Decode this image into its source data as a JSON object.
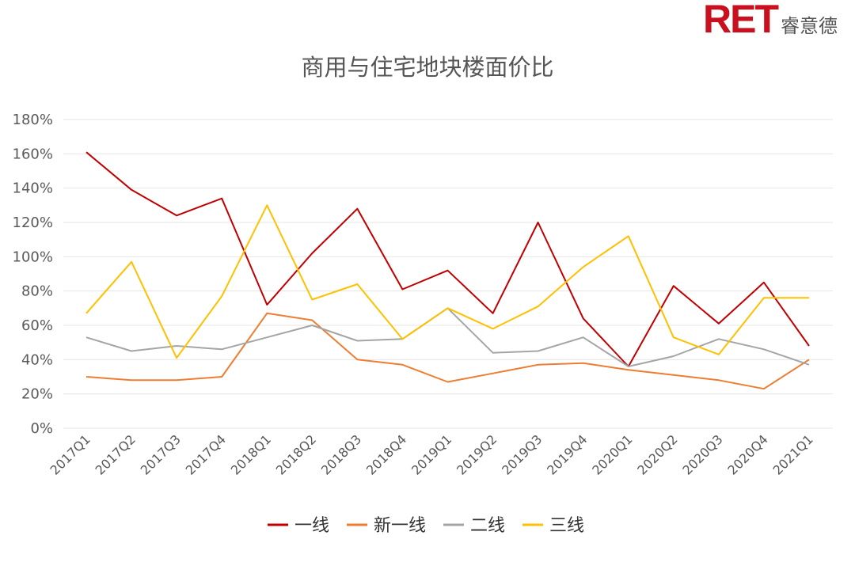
{
  "logo": {
    "mark": "RET",
    "text": "睿意德"
  },
  "chart_data": {
    "type": "line",
    "title": "商用与住宅地块楼面价比",
    "xlabel": "",
    "ylabel": "",
    "categories": [
      "2017Q1",
      "2017Q2",
      "2017Q3",
      "2017Q4",
      "2018Q1",
      "2018Q2",
      "2018Q3",
      "2018Q4",
      "2019Q1",
      "2019Q2",
      "2019Q3",
      "2019Q4",
      "2020Q1",
      "2020Q2",
      "2020Q3",
      "2020Q4",
      "2021Q1"
    ],
    "ylim": [
      0,
      180
    ],
    "yticks": [
      0,
      20,
      40,
      60,
      80,
      100,
      120,
      140,
      160,
      180
    ],
    "ytick_labels": [
      "0%",
      "20%",
      "40%",
      "60%",
      "80%",
      "100%",
      "120%",
      "140%",
      "160%",
      "180%"
    ],
    "grid": true,
    "legend_position": "bottom",
    "series": [
      {
        "name": "一线",
        "color": "#c00000",
        "values": [
          161,
          139,
          124,
          134,
          72,
          102,
          128,
          81,
          92,
          67,
          120,
          64,
          36,
          83,
          61,
          85,
          48
        ]
      },
      {
        "name": "新一线",
        "color": "#ed7d31",
        "values": [
          30,
          28,
          28,
          30,
          67,
          63,
          40,
          37,
          27,
          32,
          37,
          38,
          34,
          31,
          28,
          23,
          40
        ]
      },
      {
        "name": "二线",
        "color": "#a5a5a5",
        "values": [
          53,
          45,
          48,
          46,
          53,
          60,
          51,
          52,
          70,
          44,
          45,
          53,
          36,
          42,
          52,
          46,
          37
        ]
      },
      {
        "name": "三线",
        "color": "#ffc000",
        "values": [
          67,
          97,
          41,
          77,
          130,
          75,
          84,
          52,
          70,
          58,
          71,
          94,
          112,
          53,
          43,
          76,
          76
        ]
      }
    ]
  }
}
